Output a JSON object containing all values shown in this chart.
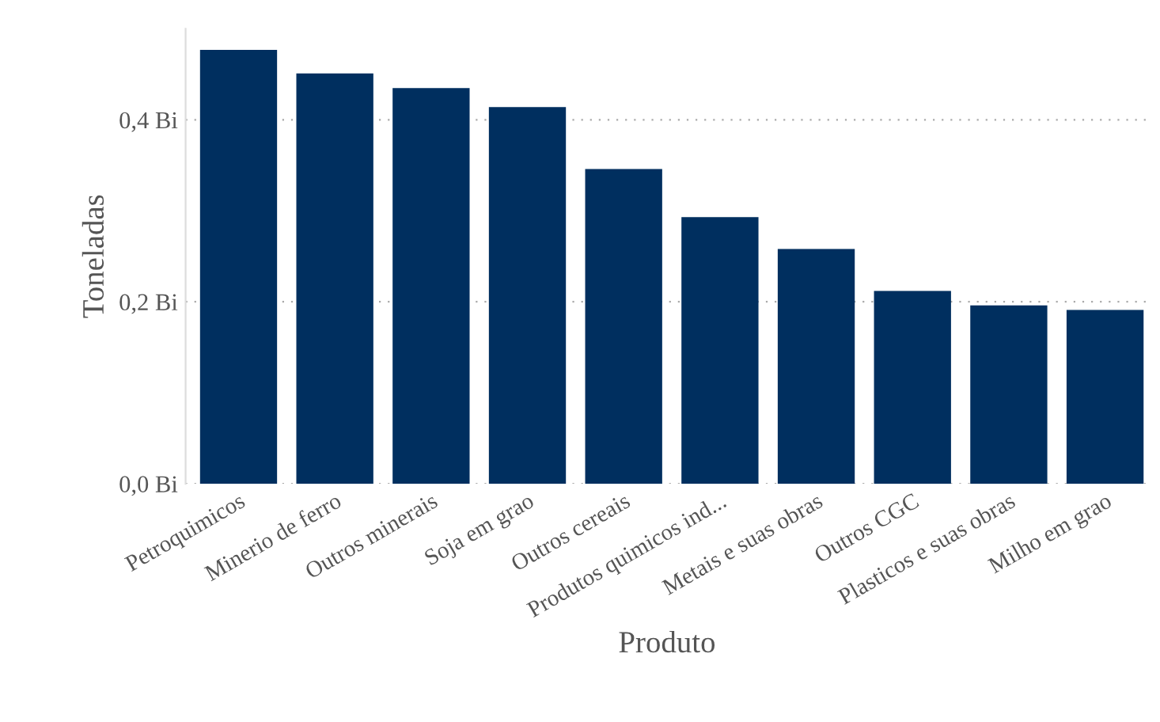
{
  "chart_data": {
    "type": "bar",
    "categories": [
      "Petroquimicos",
      "Minerio de ferro",
      "Outros minerais",
      "Soja em grao",
      "Outros cereais",
      "Produtos quimicos ind...",
      "Metais e suas obras",
      "Outros CGC",
      "Plasticos e suas obras",
      "Milho em grao"
    ],
    "values": [
      0.477,
      0.451,
      0.435,
      0.414,
      0.346,
      0.293,
      0.258,
      0.212,
      0.196,
      0.191
    ],
    "color": "#002f5f",
    "xlabel": "Produto",
    "ylabel": "Toneladas",
    "ylim": [
      0,
      0.5
    ],
    "yticks": [
      {
        "value": 0,
        "label": "0,0 Bi"
      },
      {
        "value": 0.2,
        "label": "0,2 Bi"
      },
      {
        "value": 0.4,
        "label": "0,4 Bi"
      }
    ],
    "grid": "y"
  }
}
